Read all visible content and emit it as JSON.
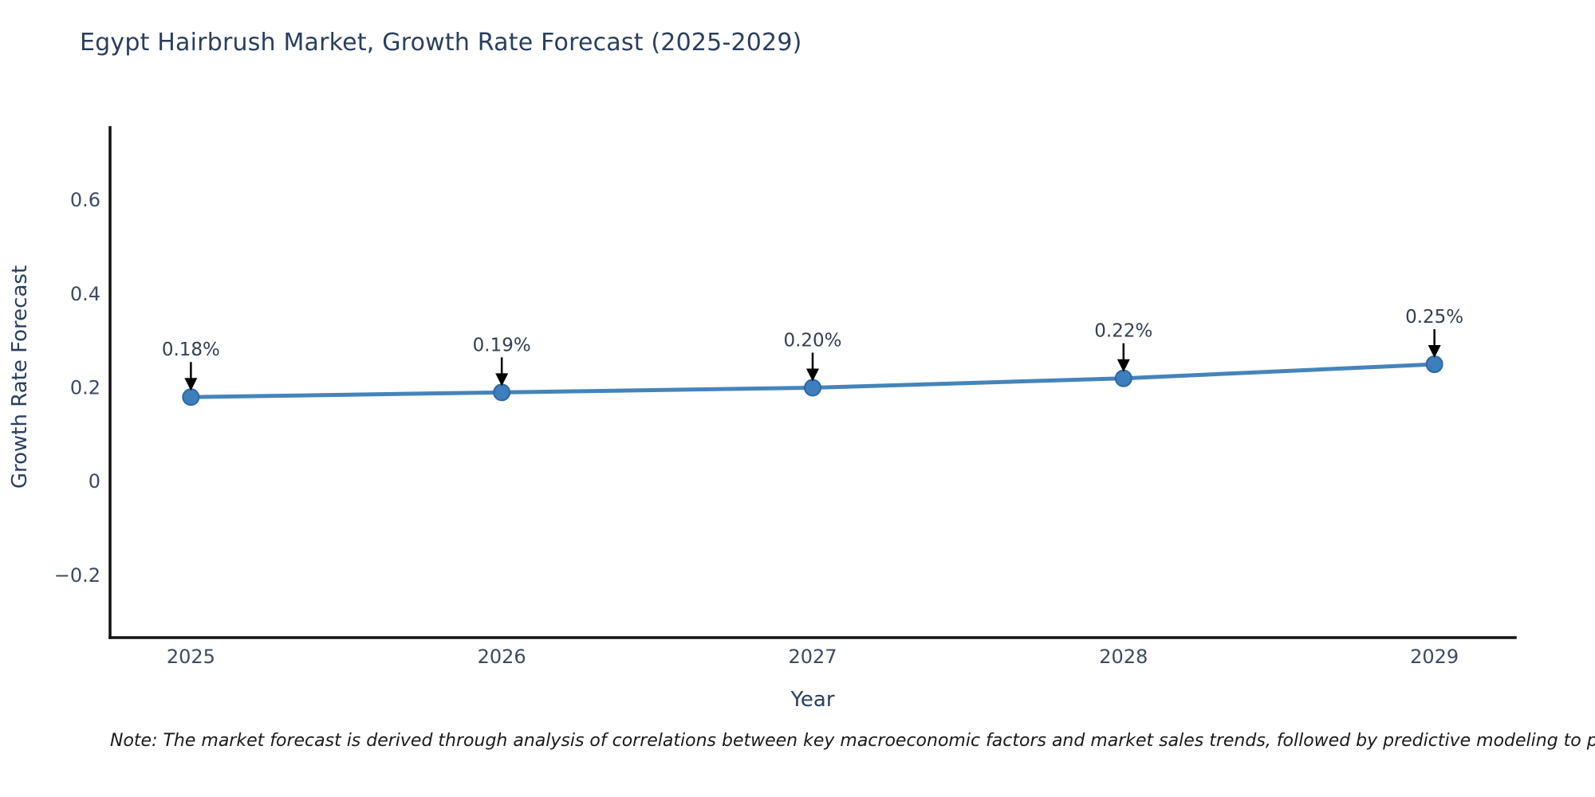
{
  "title": "Egypt Hairbrush Market, Growth Rate Forecast (2025-2029)",
  "note": "Note: The market forecast is derived through analysis of correlations between key macroeconomic factors and market sales trends, followed by predictive modeling to project future sa",
  "colors": {
    "line": "#4584ba",
    "marker_fill": "#3d7ebd",
    "marker_edge": "#2b69a5",
    "axis": "#111111",
    "arrow": "#000000",
    "title_text": "#2a3f5f",
    "tick_text": "#3d4a63"
  },
  "chart_data": {
    "type": "line",
    "title": "Egypt Hairbrush Market, Growth Rate Forecast (2025-2029)",
    "x": [
      2025,
      2026,
      2027,
      2028,
      2029
    ],
    "y": [
      0.18,
      0.19,
      0.2,
      0.22,
      0.25
    ],
    "point_labels": [
      "0.18%",
      "0.19%",
      "0.20%",
      "0.22%",
      "0.25%"
    ],
    "xlabel": "Year",
    "ylabel": "Growth Rate Forecast",
    "xticks": [
      "2025",
      "2026",
      "2027",
      "2028",
      "2029"
    ],
    "xtick_values": [
      2025,
      2026,
      2027,
      2028,
      2029
    ],
    "yticks": [
      "−0.2",
      "0",
      "0.2",
      "0.4",
      "0.6"
    ],
    "ytick_values": [
      -0.2,
      0,
      0.2,
      0.4,
      0.6
    ],
    "xlim": [
      2024.74,
      2029.26
    ],
    "ylim": [
      -0.333,
      0.755
    ],
    "grid": false,
    "legend": false,
    "annotation_style": "value labels above points with down arrows"
  }
}
